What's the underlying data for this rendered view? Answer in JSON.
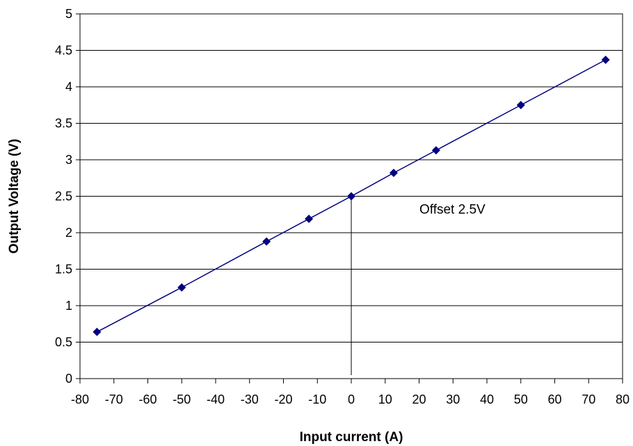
{
  "chart_data": {
    "type": "line",
    "title": "",
    "xlabel": "Input current (A)",
    "ylabel": "Output Voltage (V)",
    "xlim": [
      -80,
      80
    ],
    "ylim": [
      0,
      5
    ],
    "x_ticks": [
      -80,
      -70,
      -60,
      -50,
      -40,
      -30,
      -20,
      -10,
      0,
      10,
      20,
      30,
      40,
      50,
      60,
      70,
      80
    ],
    "y_ticks": [
      0,
      0.5,
      1,
      1.5,
      2,
      2.5,
      3,
      3.5,
      4,
      4.5,
      5
    ],
    "grid": "horizontal",
    "legend": "none",
    "series": [
      {
        "color": "#000080",
        "marker": "diamond",
        "points": [
          {
            "x": -75,
            "y": 0.64
          },
          {
            "x": -50,
            "y": 1.25
          },
          {
            "x": -25,
            "y": 1.88
          },
          {
            "x": -12.5,
            "y": 2.19
          },
          {
            "x": 0,
            "y": 2.5
          },
          {
            "x": 12.5,
            "y": 2.82
          },
          {
            "x": 25,
            "y": 3.13
          },
          {
            "x": 50,
            "y": 3.75
          },
          {
            "x": 75,
            "y": 4.37
          }
        ]
      }
    ],
    "annotation": {
      "text": "Offset 2.5V",
      "x": 0,
      "y": 2.5
    }
  }
}
